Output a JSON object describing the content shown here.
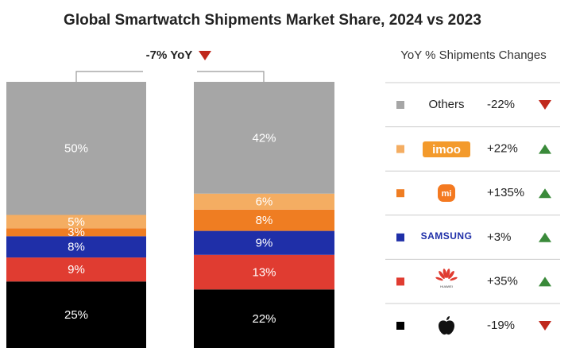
{
  "chart_data": {
    "type": "stacked-bar",
    "title": "Global Smartwatch Shipments Market Share, 2024 vs 2023",
    "total_yoy": {
      "value": -7,
      "label": "-7% YoY"
    },
    "legend_title": "YoY % Shipments Changes",
    "categories": [
      null,
      null
    ],
    "ylim": [
      0,
      100
    ],
    "series": [
      {
        "color": "#000000",
        "values": [
          25,
          22
        ],
        "value_labels": [
          "25%",
          "22%"
        ],
        "yoy": {
          "value": -19,
          "label": "-19%"
        }
      },
      {
        "name": "HUAWEI",
        "color": "#e03c31",
        "values": [
          9,
          13
        ],
        "value_labels": [
          "9%",
          "13%"
        ],
        "yoy": {
          "value": 35,
          "label": "+35%"
        }
      },
      {
        "name": "SAMSUNG",
        "color": "#1f2fa8",
        "values": [
          8,
          9
        ],
        "value_labels": [
          "8%",
          "9%"
        ],
        "yoy": {
          "value": 3,
          "label": "+3%"
        }
      },
      {
        "name": "mi",
        "color": "#ef7d22",
        "values": [
          3,
          8
        ],
        "value_labels": [
          "3%",
          "8%"
        ],
        "yoy": {
          "value": 135,
          "label": "+135%"
        }
      },
      {
        "name": "imoo",
        "color": "#f4ad62",
        "values": [
          5,
          6
        ],
        "value_labels": [
          "5%",
          "6%"
        ],
        "yoy": {
          "value": 22,
          "label": "+22%"
        }
      },
      {
        "name": "Others",
        "color": "#a6a6a6",
        "values": [
          50,
          42
        ],
        "value_labels": [
          "50%",
          "42%"
        ],
        "yoy": {
          "value": -22,
          "label": "-22%"
        }
      }
    ]
  }
}
